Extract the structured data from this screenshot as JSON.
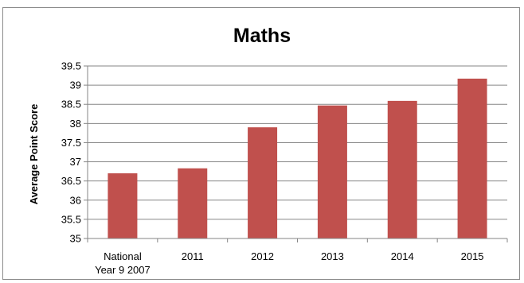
{
  "chart_data": {
    "type": "bar",
    "title": "Maths",
    "xlabel": "",
    "ylabel": "Average Point Score",
    "categories": [
      "National Year 9 2007",
      "2011",
      "2012",
      "2013",
      "2014",
      "2015"
    ],
    "category_lines": [
      [
        "National",
        "Year 9 2007"
      ],
      [
        "2011"
      ],
      [
        "2012"
      ],
      [
        "2013"
      ],
      [
        "2014"
      ],
      [
        "2015"
      ]
    ],
    "values": [
      36.7,
      36.83,
      37.9,
      38.47,
      38.59,
      39.17
    ],
    "ylim": [
      35,
      39.5
    ],
    "yticks": [
      "35",
      "35.5",
      "36",
      "36.5",
      "37",
      "37.5",
      "38",
      "38.5",
      "39",
      "39.5"
    ],
    "grid": true,
    "legend": "none",
    "colors": {
      "bar": "#c0504d",
      "grid": "#868686",
      "axis": "#868686"
    }
  }
}
